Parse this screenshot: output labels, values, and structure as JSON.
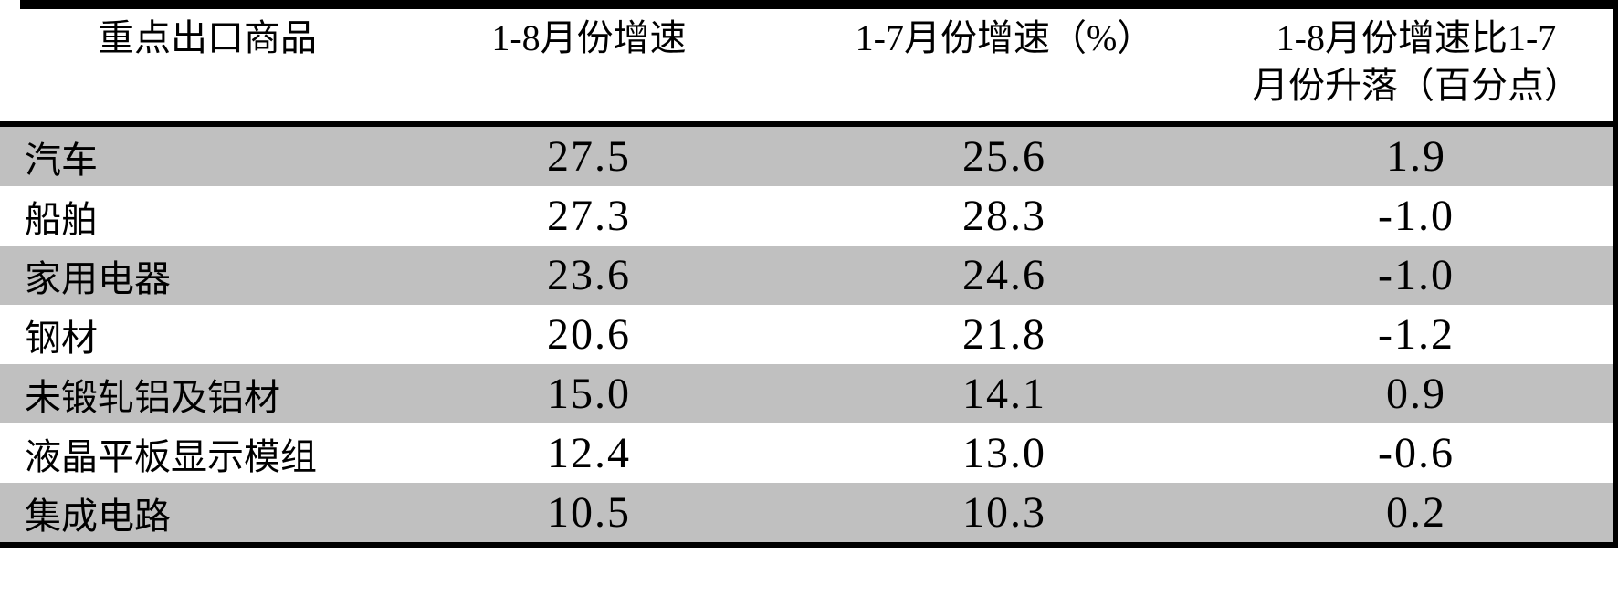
{
  "colors": {
    "row_shade": "#c0c0c0",
    "border": "#000000",
    "background": "#ffffff",
    "text": "#000000"
  },
  "header": {
    "col1": "重点出口商品",
    "col2": "1-8月份增速",
    "col3": "1-7月份增速（%）",
    "col4_line1": "1-8月份增速比1-7",
    "col4_line2": "月份升落（百分点）"
  },
  "chart_data": {
    "type": "table",
    "title": "",
    "columns": [
      "重点出口商品",
      "1-8月份增速",
      "1-7月份增速（%）",
      "1-8月份增速比1-7月份升落（百分点）"
    ],
    "rows": [
      {
        "commodity": "汽车",
        "growth_1_8": "27.5",
        "growth_1_7": "25.6",
        "change_pct_points": "1.9"
      },
      {
        "commodity": "船舶",
        "growth_1_8": "27.3",
        "growth_1_7": "28.3",
        "change_pct_points": "-1.0"
      },
      {
        "commodity": "家用电器",
        "growth_1_8": "23.6",
        "growth_1_7": "24.6",
        "change_pct_points": "-1.0"
      },
      {
        "commodity": "钢材",
        "growth_1_8": "20.6",
        "growth_1_7": "21.8",
        "change_pct_points": "-1.2"
      },
      {
        "commodity": "未锻轧铝及铝材",
        "growth_1_8": "15.0",
        "growth_1_7": "14.1",
        "change_pct_points": "0.9"
      },
      {
        "commodity": "液晶平板显示模组",
        "growth_1_8": "12.4",
        "growth_1_7": "13.0",
        "change_pct_points": "-0.6"
      },
      {
        "commodity": "集成电路",
        "growth_1_8": "10.5",
        "growth_1_7": "10.3",
        "change_pct_points": "0.2"
      }
    ],
    "layout": {
      "shading": "alternating rows starting shaded (rows 1,3,5,7)",
      "borders": "thick top rule, thick header rule, thick bottom rule, thick right edge rule"
    }
  }
}
